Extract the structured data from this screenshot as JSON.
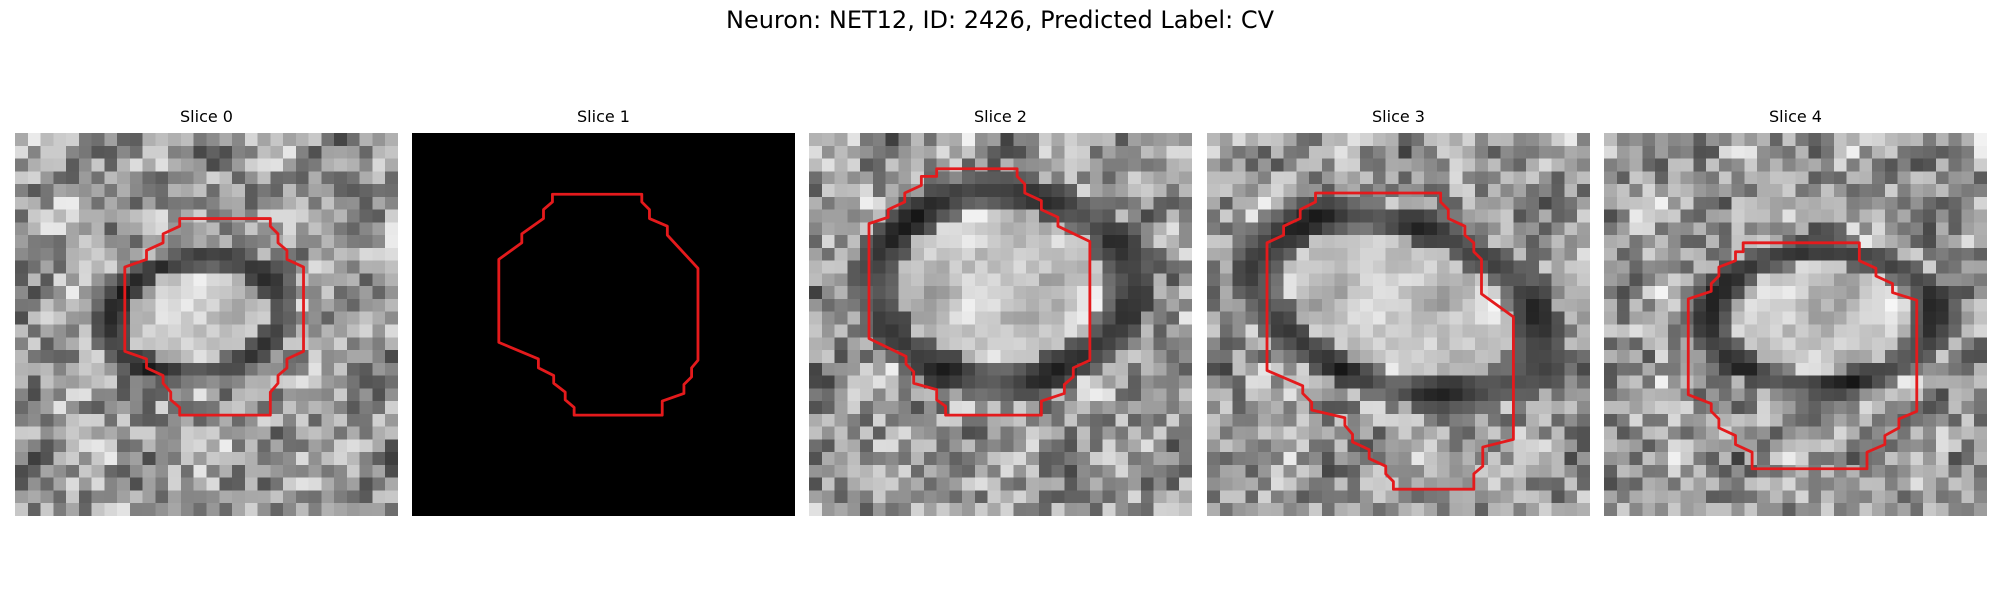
{
  "figure": {
    "title": "Neuron: NET12, ID: 2426, Predicted Label: CV"
  },
  "panels": [
    {
      "title": "Slice 0",
      "background": "grayscale"
    },
    {
      "title": "Slice 1",
      "background": "black"
    },
    {
      "title": "Slice 2",
      "background": "grayscale"
    },
    {
      "title": "Slice 3",
      "background": "grayscale"
    },
    {
      "title": "Slice 4",
      "background": "grayscale"
    }
  ],
  "colors": {
    "contour": "#e41a1c",
    "background": "#ffffff"
  }
}
